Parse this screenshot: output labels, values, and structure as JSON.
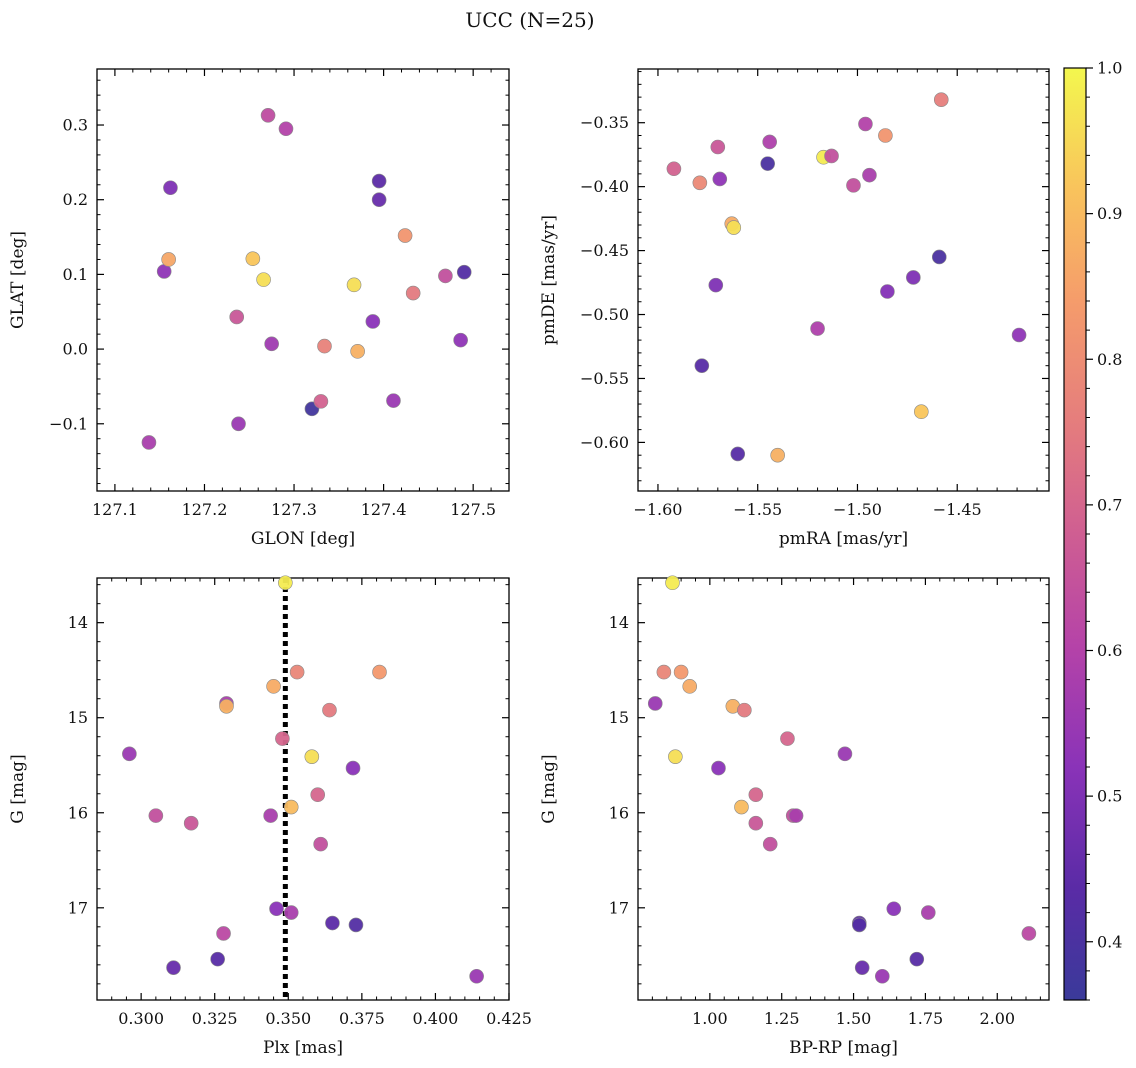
{
  "figure": {
    "title": "UCC (N=25)"
  },
  "colorbar": {
    "min": 0.36,
    "max": 1.0,
    "ticks": [
      0.4,
      0.5,
      0.6,
      0.7,
      0.8,
      0.9,
      1.0
    ],
    "tick_labels": [
      "0.4",
      "0.5",
      "0.6",
      "0.7",
      "0.8",
      "0.9",
      "1.0"
    ],
    "colormap": "plasma"
  },
  "chart_data": [
    {
      "type": "scatter",
      "xlabel": "GLON [deg]",
      "ylabel": "GLAT [deg]",
      "xlim": [
        127.08,
        127.54
      ],
      "ylim": [
        -0.19,
        0.375
      ],
      "xticks": [
        127.1,
        127.2,
        127.3,
        127.4,
        127.5
      ],
      "xtick_labels": [
        "127.1",
        "127.2",
        "127.3",
        "127.4",
        "127.5"
      ],
      "yticks": [
        -0.1,
        0.0,
        0.1,
        0.2,
        0.3
      ],
      "ytick_labels": [
        "−0.1",
        "0.0",
        "0.1",
        "0.2",
        "0.3"
      ],
      "points": [
        {
          "x": 127.138,
          "y": -0.125,
          "c": 0.58
        },
        {
          "x": 127.155,
          "y": 0.104,
          "c": 0.53
        },
        {
          "x": 127.16,
          "y": 0.12,
          "c": 0.86
        },
        {
          "x": 127.162,
          "y": 0.216,
          "c": 0.5
        },
        {
          "x": 127.236,
          "y": 0.043,
          "c": 0.66
        },
        {
          "x": 127.238,
          "y": -0.1,
          "c": 0.55
        },
        {
          "x": 127.254,
          "y": 0.121,
          "c": 0.92
        },
        {
          "x": 127.266,
          "y": 0.093,
          "c": 0.96
        },
        {
          "x": 127.271,
          "y": 0.313,
          "c": 0.63
        },
        {
          "x": 127.275,
          "y": 0.007,
          "c": 0.56
        },
        {
          "x": 127.291,
          "y": 0.295,
          "c": 0.6
        },
        {
          "x": 127.32,
          "y": -0.08,
          "c": 0.38
        },
        {
          "x": 127.33,
          "y": -0.07,
          "c": 0.69
        },
        {
          "x": 127.334,
          "y": 0.004,
          "c": 0.77
        },
        {
          "x": 127.367,
          "y": 0.086,
          "c": 0.96
        },
        {
          "x": 127.371,
          "y": -0.003,
          "c": 0.88
        },
        {
          "x": 127.388,
          "y": 0.037,
          "c": 0.52
        },
        {
          "x": 127.395,
          "y": 0.225,
          "c": 0.44
        },
        {
          "x": 127.395,
          "y": 0.2,
          "c": 0.46
        },
        {
          "x": 127.411,
          "y": -0.069,
          "c": 0.55
        },
        {
          "x": 127.424,
          "y": 0.152,
          "c": 0.82
        },
        {
          "x": 127.433,
          "y": 0.075,
          "c": 0.75
        },
        {
          "x": 127.469,
          "y": 0.098,
          "c": 0.64
        },
        {
          "x": 127.486,
          "y": 0.012,
          "c": 0.53
        },
        {
          "x": 127.49,
          "y": 0.103,
          "c": 0.42
        }
      ]
    },
    {
      "type": "scatter",
      "xlabel": "pmRA [mas/yr]",
      "ylabel": "pmDE [mas/yr]",
      "xlim": [
        -1.61,
        -1.404
      ],
      "ylim": [
        -0.638,
        -0.308
      ],
      "xticks": [
        -1.6,
        -1.55,
        -1.5,
        -1.45
      ],
      "xtick_labels": [
        "−1.60",
        "−1.55",
        "−1.50",
        "−1.45"
      ],
      "yticks": [
        -0.6,
        -0.55,
        -0.5,
        -0.45,
        -0.4,
        -0.35
      ],
      "ytick_labels": [
        "−0.60",
        "−0.55",
        "−0.50",
        "−0.45",
        "−0.40",
        "−0.35"
      ],
      "points": [
        {
          "x": -1.592,
          "y": -0.386,
          "c": 0.69
        },
        {
          "x": -1.579,
          "y": -0.397,
          "c": 0.79
        },
        {
          "x": -1.578,
          "y": -0.54,
          "c": 0.43
        },
        {
          "x": -1.571,
          "y": -0.477,
          "c": 0.5
        },
        {
          "x": -1.57,
          "y": -0.369,
          "c": 0.66
        },
        {
          "x": -1.569,
          "y": -0.394,
          "c": 0.53
        },
        {
          "x": -1.563,
          "y": -0.429,
          "c": 0.87
        },
        {
          "x": -1.562,
          "y": -0.432,
          "c": 0.96
        },
        {
          "x": -1.56,
          "y": -0.609,
          "c": 0.43
        },
        {
          "x": -1.545,
          "y": -0.382,
          "c": 0.4
        },
        {
          "x": -1.544,
          "y": -0.365,
          "c": 0.59
        },
        {
          "x": -1.54,
          "y": -0.61,
          "c": 0.88
        },
        {
          "x": -1.52,
          "y": -0.511,
          "c": 0.59
        },
        {
          "x": -1.517,
          "y": -0.377,
          "c": 0.98
        },
        {
          "x": -1.513,
          "y": -0.376,
          "c": 0.64
        },
        {
          "x": -1.502,
          "y": -0.399,
          "c": 0.64
        },
        {
          "x": -1.496,
          "y": -0.351,
          "c": 0.6
        },
        {
          "x": -1.494,
          "y": -0.391,
          "c": 0.58
        },
        {
          "x": -1.486,
          "y": -0.36,
          "c": 0.82
        },
        {
          "x": -1.485,
          "y": -0.482,
          "c": 0.51
        },
        {
          "x": -1.472,
          "y": -0.471,
          "c": 0.5
        },
        {
          "x": -1.468,
          "y": -0.576,
          "c": 0.92
        },
        {
          "x": -1.459,
          "y": -0.455,
          "c": 0.4
        },
        {
          "x": -1.458,
          "y": -0.332,
          "c": 0.76
        },
        {
          "x": -1.419,
          "y": -0.516,
          "c": 0.53
        }
      ]
    },
    {
      "type": "scatter",
      "xlabel": "Plx [mas]",
      "ylabel": "G [mag]",
      "xlim": [
        0.285,
        0.425
      ],
      "ylim": [
        17.97,
        13.53
      ],
      "y_inverted": true,
      "xticks": [
        0.3,
        0.325,
        0.35,
        0.375,
        0.4,
        0.425
      ],
      "xtick_labels": [
        "0.300",
        "0.325",
        "0.350",
        "0.375",
        "0.400",
        "0.425"
      ],
      "yticks": [
        14,
        15,
        16,
        17
      ],
      "ytick_labels": [
        "14",
        "15",
        "16",
        "17"
      ],
      "vline": {
        "x": 0.349,
        "style": "dotted"
      },
      "points": [
        {
          "x": 0.296,
          "y": 15.38,
          "c": 0.55
        },
        {
          "x": 0.305,
          "y": 16.03,
          "c": 0.64
        },
        {
          "x": 0.311,
          "y": 17.63,
          "c": 0.46
        },
        {
          "x": 0.317,
          "y": 16.11,
          "c": 0.66
        },
        {
          "x": 0.326,
          "y": 17.54,
          "c": 0.43
        },
        {
          "x": 0.328,
          "y": 17.27,
          "c": 0.62
        },
        {
          "x": 0.329,
          "y": 14.85,
          "c": 0.58
        },
        {
          "x": 0.329,
          "y": 14.88,
          "c": 0.88
        },
        {
          "x": 0.344,
          "y": 16.03,
          "c": 0.58
        },
        {
          "x": 0.345,
          "y": 14.67,
          "c": 0.87
        },
        {
          "x": 0.346,
          "y": 17.01,
          "c": 0.52
        },
        {
          "x": 0.348,
          "y": 15.22,
          "c": 0.7
        },
        {
          "x": 0.349,
          "y": 13.58,
          "c": 0.98
        },
        {
          "x": 0.351,
          "y": 17.05,
          "c": 0.58
        },
        {
          "x": 0.351,
          "y": 15.94,
          "c": 0.9
        },
        {
          "x": 0.353,
          "y": 14.52,
          "c": 0.78
        },
        {
          "x": 0.358,
          "y": 15.41,
          "c": 0.96
        },
        {
          "x": 0.36,
          "y": 15.81,
          "c": 0.7
        },
        {
          "x": 0.361,
          "y": 16.33,
          "c": 0.64
        },
        {
          "x": 0.364,
          "y": 14.92,
          "c": 0.75
        },
        {
          "x": 0.365,
          "y": 17.16,
          "c": 0.44
        },
        {
          "x": 0.372,
          "y": 15.53,
          "c": 0.52
        },
        {
          "x": 0.373,
          "y": 17.18,
          "c": 0.42
        },
        {
          "x": 0.381,
          "y": 14.52,
          "c": 0.83
        },
        {
          "x": 0.414,
          "y": 17.72,
          "c": 0.55
        }
      ]
    },
    {
      "type": "scatter",
      "xlabel": "BP-RP [mag]",
      "ylabel": "G [mag]",
      "xlim": [
        0.75,
        2.18
      ],
      "ylim": [
        17.97,
        13.53
      ],
      "y_inverted": true,
      "xticks": [
        1.0,
        1.25,
        1.5,
        1.75,
        2.0
      ],
      "xtick_labels": [
        "1.00",
        "1.25",
        "1.50",
        "1.75",
        "2.00"
      ],
      "yticks": [
        14,
        15,
        16,
        17
      ],
      "ytick_labels": [
        "14",
        "15",
        "16",
        "17"
      ],
      "points": [
        {
          "x": 0.81,
          "y": 14.85,
          "c": 0.55
        },
        {
          "x": 0.84,
          "y": 14.52,
          "c": 0.78
        },
        {
          "x": 0.87,
          "y": 13.58,
          "c": 0.98
        },
        {
          "x": 0.88,
          "y": 15.41,
          "c": 0.96
        },
        {
          "x": 0.9,
          "y": 14.52,
          "c": 0.83
        },
        {
          "x": 0.93,
          "y": 14.67,
          "c": 0.87
        },
        {
          "x": 1.03,
          "y": 15.53,
          "c": 0.52
        },
        {
          "x": 1.08,
          "y": 14.88,
          "c": 0.88
        },
        {
          "x": 1.11,
          "y": 15.94,
          "c": 0.9
        },
        {
          "x": 1.12,
          "y": 14.92,
          "c": 0.75
        },
        {
          "x": 1.16,
          "y": 15.81,
          "c": 0.7
        },
        {
          "x": 1.16,
          "y": 16.11,
          "c": 0.66
        },
        {
          "x": 1.21,
          "y": 16.33,
          "c": 0.64
        },
        {
          "x": 1.27,
          "y": 15.22,
          "c": 0.7
        },
        {
          "x": 1.29,
          "y": 16.03,
          "c": 0.64
        },
        {
          "x": 1.3,
          "y": 16.03,
          "c": 0.58
        },
        {
          "x": 1.47,
          "y": 15.38,
          "c": 0.55
        },
        {
          "x": 1.52,
          "y": 17.16,
          "c": 0.44
        },
        {
          "x": 1.52,
          "y": 17.18,
          "c": 0.42
        },
        {
          "x": 1.53,
          "y": 17.63,
          "c": 0.46
        },
        {
          "x": 1.6,
          "y": 17.72,
          "c": 0.55
        },
        {
          "x": 1.64,
          "y": 17.01,
          "c": 0.52
        },
        {
          "x": 1.72,
          "y": 17.54,
          "c": 0.43
        },
        {
          "x": 1.76,
          "y": 17.05,
          "c": 0.58
        },
        {
          "x": 2.11,
          "y": 17.27,
          "c": 0.62
        }
      ]
    }
  ]
}
